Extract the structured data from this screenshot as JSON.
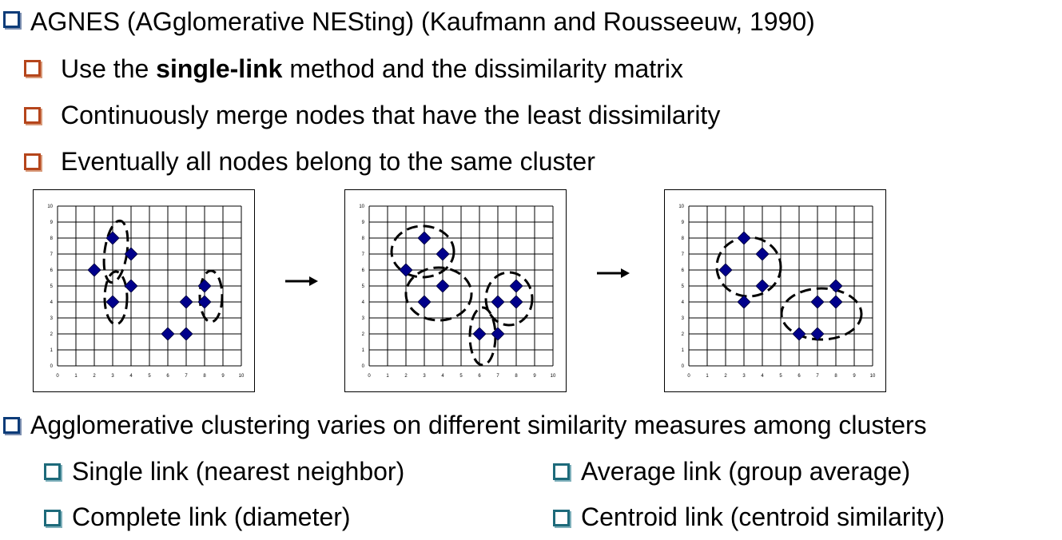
{
  "bullets": {
    "top": "AGNES (AGglomerative NESting) (Kaufmann and Rousseeuw, 1990)",
    "sub1_pre": "Use the ",
    "sub1_bold": "single-link",
    "sub1_post": " method and the dissimilarity matrix",
    "sub2": "Continuously merge nodes that have the least dissimilarity",
    "sub3": "Eventually all nodes belong to the same cluster",
    "bottom": "Agglomerative clustering varies on different similarity measures among clusters",
    "measures": [
      "Single link (nearest neighbor)",
      "Average link (group average)",
      "Complete link (diameter)",
      "Centroid link (centroid similarity)"
    ]
  },
  "colors": {
    "bullet_top": "#0a3b78",
    "bullet_sub": "#b5451b",
    "bullet_measure": "#1d6a7a",
    "point": "#00008b"
  },
  "chart_data": [
    {
      "type": "scatter",
      "xlim": [
        0,
        10
      ],
      "ylim": [
        0,
        10
      ],
      "xticks": [
        "0",
        "1",
        "2",
        "3",
        "4",
        "5",
        "6",
        "7",
        "8",
        "9",
        "10"
      ],
      "yticks": [
        "0",
        "1",
        "2",
        "3",
        "4",
        "5",
        "6",
        "7",
        "8",
        "9",
        "10"
      ],
      "grid": true,
      "points": [
        [
          2,
          6
        ],
        [
          3,
          8
        ],
        [
          4,
          7
        ],
        [
          3,
          4
        ],
        [
          4,
          5
        ],
        [
          6,
          2
        ],
        [
          7,
          2
        ],
        [
          7,
          4
        ],
        [
          8,
          5
        ],
        [
          8,
          4
        ]
      ]
    },
    {
      "type": "scatter",
      "xlim": [
        0,
        10
      ],
      "ylim": [
        0,
        10
      ],
      "xticks": [
        "0",
        "1",
        "2",
        "3",
        "4",
        "5",
        "6",
        "7",
        "8",
        "9",
        "10"
      ],
      "yticks": [
        "0",
        "1",
        "2",
        "3",
        "4",
        "5",
        "6",
        "7",
        "8",
        "9",
        "10"
      ],
      "grid": true,
      "points": [
        [
          2,
          6
        ],
        [
          3,
          8
        ],
        [
          4,
          7
        ],
        [
          3,
          4
        ],
        [
          4,
          5
        ],
        [
          6,
          2
        ],
        [
          7,
          2
        ],
        [
          7,
          4
        ],
        [
          8,
          5
        ],
        [
          8,
          4
        ]
      ]
    },
    {
      "type": "scatter",
      "xlim": [
        0,
        10
      ],
      "ylim": [
        0,
        10
      ],
      "xticks": [
        "0",
        "1",
        "2",
        "3",
        "4",
        "5",
        "6",
        "7",
        "8",
        "9",
        "10"
      ],
      "yticks": [
        "0",
        "1",
        "2",
        "3",
        "4",
        "5",
        "6",
        "7",
        "8",
        "9",
        "10"
      ],
      "grid": true,
      "points": [
        [
          2,
          6
        ],
        [
          3,
          8
        ],
        [
          4,
          7
        ],
        [
          3,
          4
        ],
        [
          4,
          5
        ],
        [
          6,
          2
        ],
        [
          7,
          2
        ],
        [
          7,
          4
        ],
        [
          8,
          5
        ],
        [
          8,
          4
        ]
      ]
    }
  ]
}
